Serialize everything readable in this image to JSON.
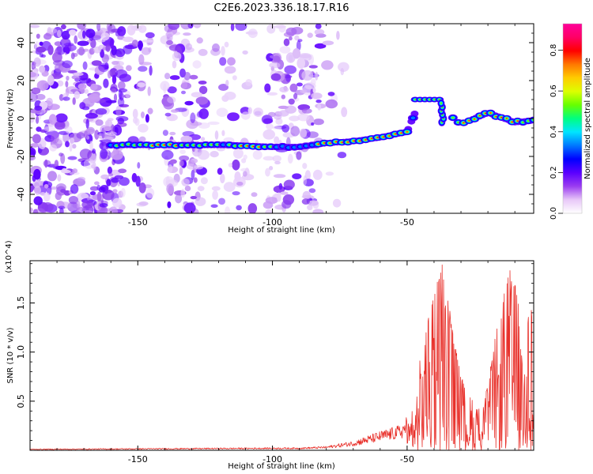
{
  "chart_data": [
    {
      "type": "heatmap",
      "title": "C2E6.2023.336.18.17.R16",
      "xlabel": "Height of straight line (km)",
      "ylabel": "Frequency (Hz)",
      "xlim": [
        -190,
        -3
      ],
      "ylim": [
        -50,
        50
      ],
      "x_ticks": [
        -150,
        -100,
        -50
      ],
      "y_ticks": [
        -40,
        -20,
        0,
        20,
        40
      ],
      "colorbar": {
        "label": "Normalized spectral amplitude",
        "range": [
          0.0,
          0.93
        ],
        "ticks": [
          "0.0",
          "0.2",
          "0.4",
          "0.6",
          "0.8"
        ],
        "tick_values": [
          0.0,
          0.2,
          0.4,
          0.6,
          0.8
        ],
        "colormap": [
          "#ffffff",
          "#e8c8f8",
          "#9a3cf0",
          "#5a00ff",
          "#0000ff",
          "#0077ff",
          "#00e5ff",
          "#00ff80",
          "#66ff00",
          "#ddff00",
          "#ffcc00",
          "#ff7700",
          "#ff0000",
          "#ff0066",
          "#ff0099"
        ]
      },
      "ridge": [
        [
          -160,
          -14
        ],
        [
          -145,
          -14
        ],
        [
          -130,
          -14
        ],
        [
          -115,
          -14
        ],
        [
          -100,
          -15
        ],
        [
          -90,
          -15
        ],
        [
          -80,
          -13
        ],
        [
          -70,
          -12
        ],
        [
          -60,
          -10
        ],
        [
          -50,
          -7
        ],
        [
          -45,
          10
        ],
        [
          -37,
          5
        ],
        [
          -30,
          -3
        ],
        [
          -20,
          3
        ],
        [
          -10,
          -2
        ],
        [
          -3,
          -1
        ]
      ],
      "noise_region_x": [
        -190,
        -82
      ],
      "grid": false
    },
    {
      "type": "line",
      "xlabel": "Height of straight line (km)",
      "ylabel": "SNR (10 * v/v)",
      "y_multiplier": "(x10^4)",
      "xlim": [
        -190,
        -3
      ],
      "ylim": [
        0,
        1.93
      ],
      "x_ticks": [
        -150,
        -100,
        -50
      ],
      "y_ticks": [
        0.5,
        1.0,
        1.5
      ],
      "y_tick_labels": [
        "0.5",
        "1.0",
        "1.5"
      ],
      "line_color": "#e8302a",
      "envelope": [
        [
          -190,
          0.01
        ],
        [
          -100,
          0.02
        ],
        [
          -90,
          0.02
        ],
        [
          -80,
          0.03
        ],
        [
          -70,
          0.07
        ],
        [
          -60,
          0.14
        ],
        [
          -52,
          0.19
        ],
        [
          -50,
          0.25
        ],
        [
          -47,
          0.5
        ],
        [
          -45,
          1.0
        ],
        [
          -40,
          1.6
        ],
        [
          -37,
          1.9
        ],
        [
          -34,
          1.4
        ],
        [
          -30,
          0.75
        ],
        [
          -27,
          0.6
        ],
        [
          -25,
          0.45
        ],
        [
          -22,
          0.4
        ],
        [
          -20,
          0.7
        ],
        [
          -17,
          1.2
        ],
        [
          -12,
          1.85
        ],
        [
          -9,
          1.6
        ],
        [
          -7,
          0.8
        ],
        [
          -5,
          1.4
        ],
        [
          -3,
          1.5
        ]
      ],
      "grid": false
    }
  ]
}
